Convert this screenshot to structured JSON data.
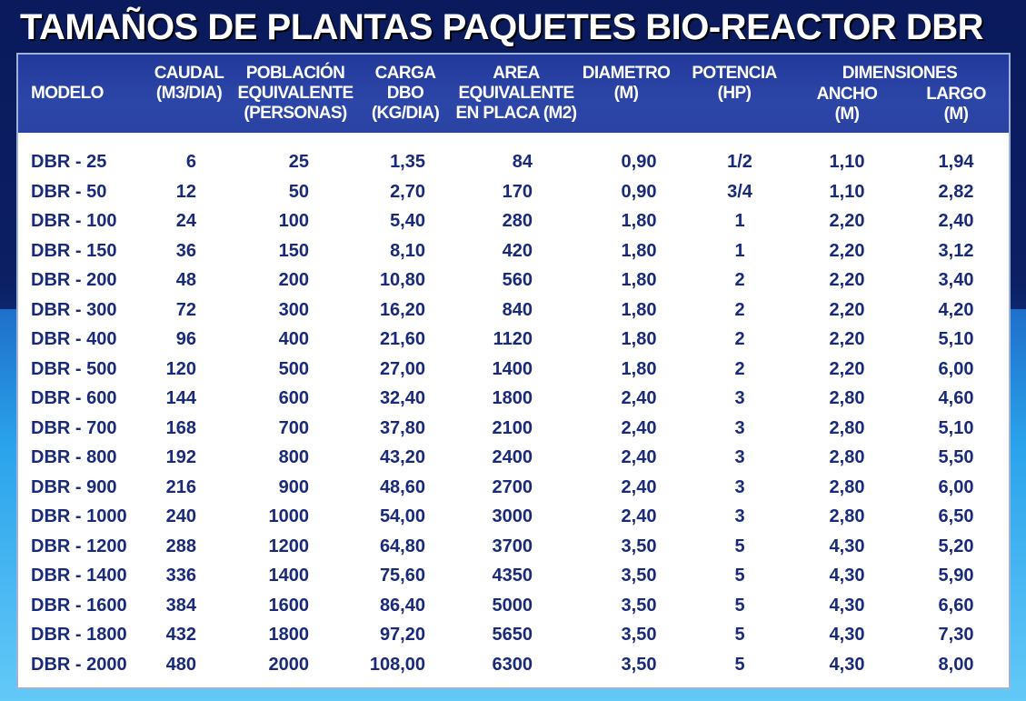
{
  "title": "TAMAÑOS DE PLANTAS PAQUETES BIO-REACTOR DBR",
  "headers": {
    "modelo": "MODELO",
    "caudal": "CAUDAL\n(M3/DIA)",
    "poblacion": "POBLACIÓN\nEQUIVALENTE\n(PERSONAS)",
    "carga": "CARGA\nDBO\n(KG/DIA)",
    "area": "AREA\nEQUIVALENTE\nEN PLACA (M2)",
    "diametro": "DIAMETRO\n(M)",
    "potencia": "POTENCIA\n(HP)",
    "dimensiones": "DIMENSIONES",
    "ancho": "ANCHO\n(M)",
    "largo": "LARGO\n(M)"
  },
  "rows": [
    {
      "modelo": "DBR - 25",
      "caudal": "6",
      "poblacion": "25",
      "carga": "1,35",
      "area": "84",
      "diametro": "0,90",
      "potencia": "1/2",
      "ancho": "1,10",
      "largo": "1,94"
    },
    {
      "modelo": "DBR - 50",
      "caudal": "12",
      "poblacion": "50",
      "carga": "2,70",
      "area": "170",
      "diametro": "0,90",
      "potencia": "3/4",
      "ancho": "1,10",
      "largo": "2,82"
    },
    {
      "modelo": "DBR - 100",
      "caudal": "24",
      "poblacion": "100",
      "carga": "5,40",
      "area": "280",
      "diametro": "1,80",
      "potencia": "1",
      "ancho": "2,20",
      "largo": "2,40"
    },
    {
      "modelo": "DBR - 150",
      "caudal": "36",
      "poblacion": "150",
      "carga": "8,10",
      "area": "420",
      "diametro": "1,80",
      "potencia": "1",
      "ancho": "2,20",
      "largo": "3,12"
    },
    {
      "modelo": "DBR - 200",
      "caudal": "48",
      "poblacion": "200",
      "carga": "10,80",
      "area": "560",
      "diametro": "1,80",
      "potencia": "2",
      "ancho": "2,20",
      "largo": "3,40"
    },
    {
      "modelo": "DBR - 300",
      "caudal": "72",
      "poblacion": "300",
      "carga": "16,20",
      "area": "840",
      "diametro": "1,80",
      "potencia": "2",
      "ancho": "2,20",
      "largo": "4,20"
    },
    {
      "modelo": "DBR - 400",
      "caudal": "96",
      "poblacion": "400",
      "carga": "21,60",
      "area": "1120",
      "diametro": "1,80",
      "potencia": "2",
      "ancho": "2,20",
      "largo": "5,10"
    },
    {
      "modelo": "DBR - 500",
      "caudal": "120",
      "poblacion": "500",
      "carga": "27,00",
      "area": "1400",
      "diametro": "1,80",
      "potencia": "2",
      "ancho": "2,20",
      "largo": "6,00"
    },
    {
      "modelo": "DBR - 600",
      "caudal": "144",
      "poblacion": "600",
      "carga": "32,40",
      "area": "1800",
      "diametro": "2,40",
      "potencia": "3",
      "ancho": "2,80",
      "largo": "4,60"
    },
    {
      "modelo": "DBR - 700",
      "caudal": "168",
      "poblacion": "700",
      "carga": "37,80",
      "area": "2100",
      "diametro": "2,40",
      "potencia": "3",
      "ancho": "2,80",
      "largo": "5,10"
    },
    {
      "modelo": "DBR - 800",
      "caudal": "192",
      "poblacion": "800",
      "carga": "43,20",
      "area": "2400",
      "diametro": "2,40",
      "potencia": "3",
      "ancho": "2,80",
      "largo": "5,50"
    },
    {
      "modelo": "DBR - 900",
      "caudal": "216",
      "poblacion": "900",
      "carga": "48,60",
      "area": "2700",
      "diametro": "2,40",
      "potencia": "3",
      "ancho": "2,80",
      "largo": "6,00"
    },
    {
      "modelo": "DBR - 1000",
      "caudal": "240",
      "poblacion": "1000",
      "carga": "54,00",
      "area": "3000",
      "diametro": "2,40",
      "potencia": "3",
      "ancho": "2,80",
      "largo": "6,50"
    },
    {
      "modelo": "DBR - 1200",
      "caudal": "288",
      "poblacion": "1200",
      "carga": "64,80",
      "area": "3700",
      "diametro": "3,50",
      "potencia": "5",
      "ancho": "4,30",
      "largo": "5,20"
    },
    {
      "modelo": "DBR - 1400",
      "caudal": "336",
      "poblacion": "1400",
      "carga": "75,60",
      "area": "4350",
      "diametro": "3,50",
      "potencia": "5",
      "ancho": "4,30",
      "largo": "5,90"
    },
    {
      "modelo": "DBR - 1600",
      "caudal": "384",
      "poblacion": "1600",
      "carga": "86,40",
      "area": "5000",
      "diametro": "3,50",
      "potencia": "5",
      "ancho": "4,30",
      "largo": "6,60"
    },
    {
      "modelo": "DBR - 1800",
      "caudal": "432",
      "poblacion": "1800",
      "carga": "97,20",
      "area": "5650",
      "diametro": "3,50",
      "potencia": "5",
      "ancho": "4,30",
      "largo": "7,30"
    },
    {
      "modelo": "DBR - 2000",
      "caudal": "480",
      "poblacion": "2000",
      "carga": "108,00",
      "area": "6300",
      "diametro": "3,50",
      "potencia": "5",
      "ancho": "4,30",
      "largo": "8,00"
    }
  ],
  "colors": {
    "header_bg": "#2a43a3",
    "cell_text": "#1a2a7a",
    "title_text": "#ffffff"
  }
}
